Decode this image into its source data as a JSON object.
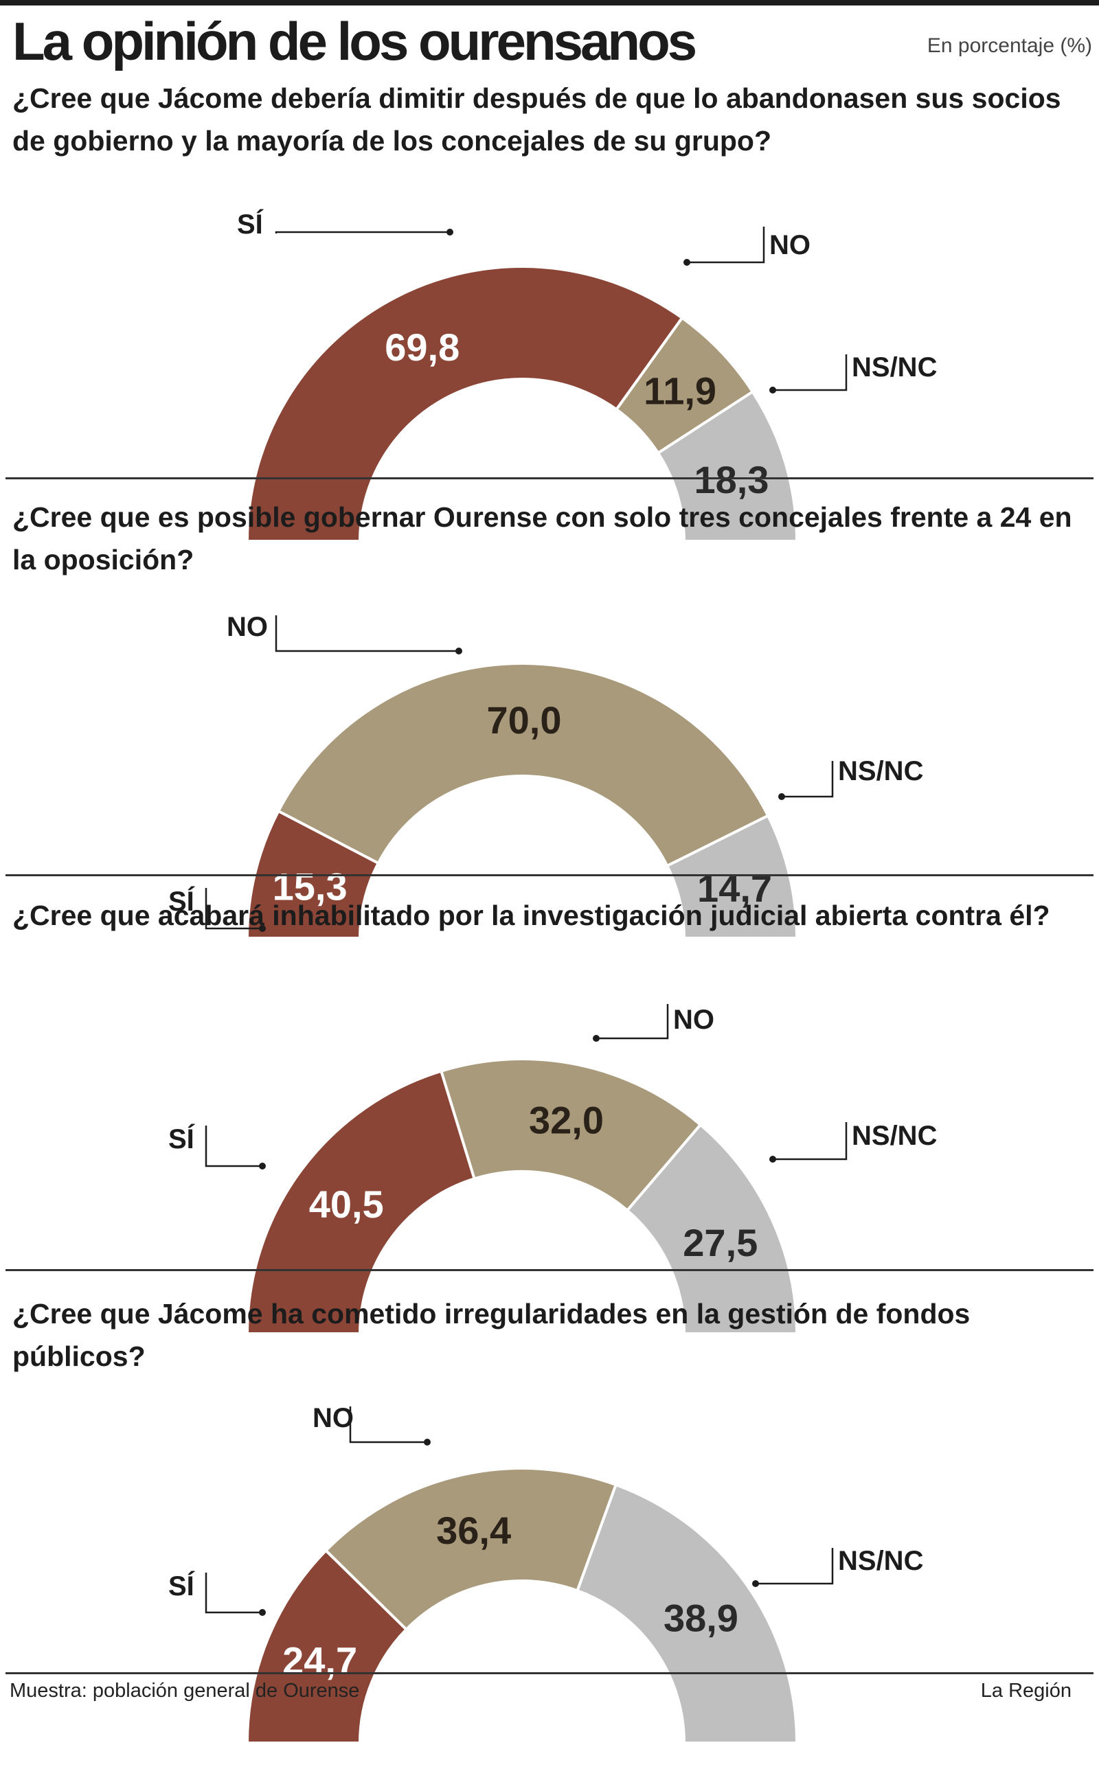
{
  "header": {
    "title": "La opinión de los ourensanos",
    "unit": "En porcentaje (%)"
  },
  "colors": {
    "si": "#8b4536",
    "no": "#a99a7c",
    "nsnc": "#c0bfbf"
  },
  "footer": {
    "source": "Muestra: población general de Ourense",
    "brand": "La Región"
  },
  "chart_data": [
    {
      "type": "pie",
      "title": "¿Cree que Jácome debería dimitir después de que lo abandonasen sus socios de gobierno y la mayoría de los concejales de su grupo?",
      "categories": [
        "SÍ",
        "NO",
        "NS/NC"
      ],
      "values": [
        69.8,
        11.9,
        18.3
      ],
      "labels": [
        "69,8",
        "11,9",
        "18,3"
      ]
    },
    {
      "type": "pie",
      "title": "¿Cree que es posible gobernar Ourense con solo tres concejales frente a 24 en la oposición?",
      "categories": [
        "SÍ",
        "NO",
        "NS/NC"
      ],
      "values": [
        15.3,
        70.0,
        14.7
      ],
      "labels": [
        "15,3",
        "70,0",
        "14,7"
      ]
    },
    {
      "type": "pie",
      "title": "¿Cree que acabará inhabilitado por la investigación judicial abierta contra él?",
      "categories": [
        "SÍ",
        "NO",
        "NS/NC"
      ],
      "values": [
        40.5,
        32.0,
        27.5
      ],
      "labels": [
        "40,5",
        "32,0",
        "27,5"
      ]
    },
    {
      "type": "pie",
      "title": "¿Cree que Jácome ha cometido irregularidades en la gestión de fondos públicos?",
      "categories": [
        "SÍ",
        "NO",
        "NS/NC"
      ],
      "values": [
        24.7,
        36.4,
        38.9
      ],
      "labels": [
        "24,7",
        "36,4",
        "38,9"
      ]
    }
  ]
}
